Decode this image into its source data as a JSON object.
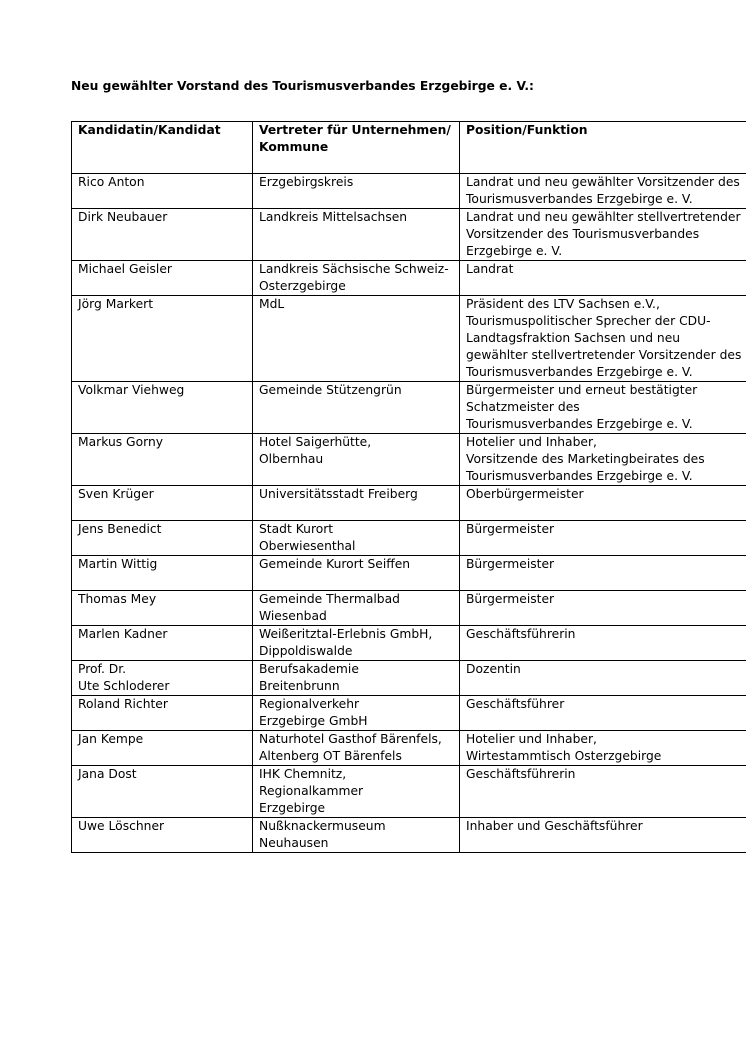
{
  "title": "Neu gewählter Vorstand des Tourismusverbandes Erzgebirge e. V.:",
  "table": {
    "headers": [
      "Kandidatin/Kandidat",
      "Vertreter für Unternehmen/ Kommune",
      "Position/Funktion"
    ],
    "rows": [
      [
        "Rico Anton",
        "Erzgebirgskreis",
        "Landrat und neu gewählter Vorsitzender des Tourismusverbandes Erzgebirge e. V."
      ],
      [
        "Dirk Neubauer",
        "Landkreis Mittelsachsen",
        "Landrat und neu gewählter stellvertretender Vorsitzender des Tourismusverbandes Erzgebirge e. V."
      ],
      [
        "Michael Geisler",
        "Landkreis Sächsische Schweiz-Osterzgebirge",
        "Landrat"
      ],
      [
        "Jörg Markert",
        "MdL",
        "Präsident des LTV Sachsen e.V., Tourismuspolitischer Sprecher der CDU-Landtagsfraktion Sachsen und neu gewählter stellvertretender Vorsitzender des Tourismusverbandes Erzgebirge e. V."
      ],
      [
        "Volkmar Viehweg",
        "Gemeinde Stützengrün",
        "Bürgermeister und erneut bestätigter Schatzmeister des\nTourismusverbandes Erzgebirge e. V."
      ],
      [
        "Markus Gorny",
        "Hotel Saigerhütte,\nOlbernhau",
        "Hotelier und Inhaber,\nVorsitzende des Marketingbeirates des Tourismusverbandes Erzgebirge e. V."
      ],
      [
        "Sven Krüger",
        "Universitätsstadt Freiberg",
        "Oberbürgermeister"
      ],
      [
        "Jens Benedict",
        "Stadt Kurort\nOberwiesenthal",
        "Bürgermeister"
      ],
      [
        "Martin Wittig",
        "Gemeinde Kurort Seiffen",
        "Bürgermeister"
      ],
      [
        "Thomas Mey",
        "Gemeinde Thermalbad Wiesenbad",
        "Bürgermeister"
      ],
      [
        "Marlen Kadner",
        "Weißeritztal-Erlebnis GmbH, Dippoldiswalde",
        "Geschäftsführerin"
      ],
      [
        "Prof. Dr.\nUte Schloderer",
        "Berufsakademie\nBreitenbrunn",
        "Dozentin"
      ],
      [
        "Roland Richter",
        "Regionalverkehr\nErzgebirge GmbH",
        "Geschäftsführer"
      ],
      [
        "Jan Kempe",
        "Naturhotel Gasthof Bärenfels, Altenberg OT Bärenfels",
        "Hotelier und Inhaber,\nWirtestammtisch Osterzgebirge"
      ],
      [
        "Jana Dost",
        "IHK Chemnitz,\nRegionalkammer\nErzgebirge",
        "Geschäftsführerin"
      ],
      [
        "Uwe Löschner",
        "Nußknackermuseum\nNeuhausen",
        "Inhaber und Geschäftsführer"
      ]
    ]
  }
}
